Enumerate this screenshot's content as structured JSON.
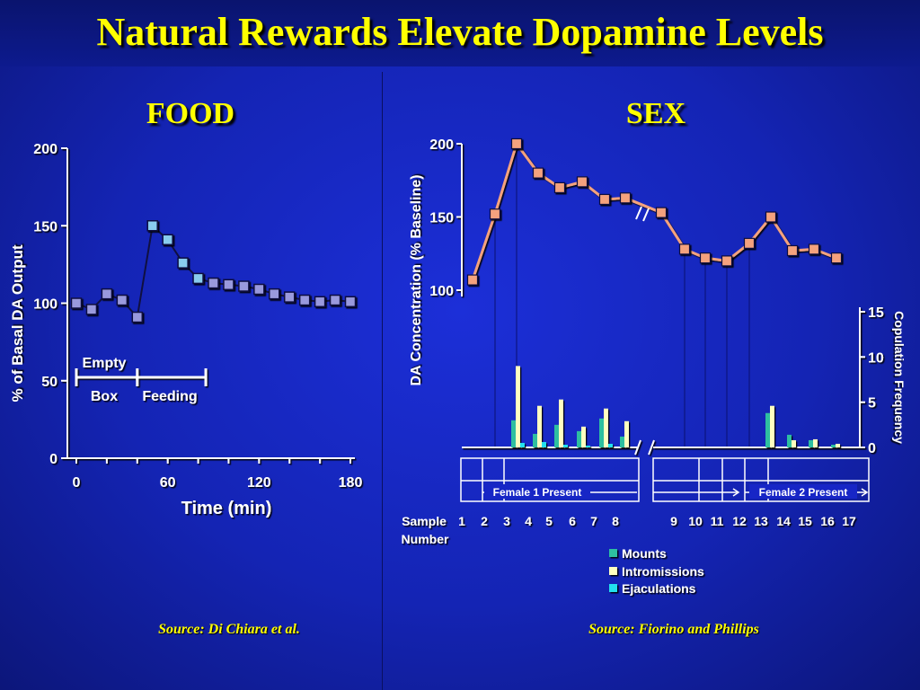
{
  "slide": {
    "title": "Natural Rewards Elevate Dopamine Levels"
  },
  "food": {
    "title": "FOOD",
    "source": "Source: Di Chiara et al.",
    "annotations": {
      "phase1_line1": "Empty",
      "phase1_line2": "Box",
      "phase2": "Feeding"
    }
  },
  "sex": {
    "title": "SEX",
    "source": "Source: Fiorino and Phillips",
    "period1_label": "Female 1 Present",
    "period2_label": "Female 2 Present",
    "sample_label_line1": "Sample",
    "sample_label_line2": "Number"
  },
  "colors": {
    "background": "#1726c6",
    "title": "#ffff00",
    "food_marker_baseline": "#9999dd",
    "food_marker_feeding": "#88ccee",
    "sex_line": "#f4a27e",
    "mounts": "#2fbfa0",
    "intromissions": "#ffffc0",
    "ejaculations": "#22e0ee"
  },
  "chart_data": [
    {
      "type": "line",
      "title": "FOOD",
      "xlabel": "Time (min)",
      "ylabel": "% of Basal DA Output",
      "xlim": [
        0,
        180
      ],
      "ylim": [
        0,
        200
      ],
      "xticks": [
        0,
        60,
        120,
        180
      ],
      "yticks": [
        0,
        50,
        100,
        150,
        200
      ],
      "grid": false,
      "series": [
        {
          "x": [
            0,
            10,
            20,
            30,
            40,
            50,
            60,
            70,
            80,
            90,
            100,
            110,
            120,
            130,
            140,
            150,
            160,
            170,
            180
          ],
          "y": [
            100,
            96,
            106,
            102,
            91,
            150,
            141,
            126,
            116,
            113,
            112,
            111,
            109,
            106,
            104,
            102,
            101,
            102,
            101
          ],
          "phase": [
            "baseline",
            "baseline",
            "baseline",
            "baseline",
            "baseline",
            "feeding",
            "feeding",
            "feeding",
            "feeding",
            "post",
            "post",
            "post",
            "post",
            "post",
            "post",
            "post",
            "post",
            "post",
            "post"
          ]
        }
      ],
      "phases": [
        {
          "label": "Empty Box",
          "x": [
            0,
            40
          ]
        },
        {
          "label": "Feeding",
          "x": [
            40,
            85
          ]
        }
      ]
    },
    {
      "type": "line+bar",
      "title": "SEX",
      "xlabel": "Sample Number",
      "ylabel": "DA Concentration (% Baseline)",
      "y2label": "Copulation Frequency",
      "ylim": [
        100,
        200
      ],
      "yticks": [
        100,
        150,
        200
      ],
      "y2lim": [
        0,
        15
      ],
      "y2ticks": [
        0,
        5,
        10,
        15
      ],
      "categories": [
        "1",
        "2",
        "3",
        "4",
        "5",
        "6",
        "7",
        "8",
        "9",
        "10",
        "11",
        "12",
        "13",
        "14",
        "15",
        "16",
        "17"
      ],
      "line_series": {
        "name": "DA Concentration",
        "values": [
          107,
          152,
          200,
          180,
          170,
          174,
          162,
          163,
          153,
          128,
          122,
          120,
          132,
          150,
          127,
          128,
          122
        ]
      },
      "bar_series": [
        {
          "name": "Mounts",
          "values": [
            0,
            0,
            3,
            1.5,
            2.5,
            1.8,
            3.2,
            1.2,
            0,
            0,
            0,
            0,
            0,
            3.8,
            1.4,
            0.8,
            0.3
          ]
        },
        {
          "name": "Intromissions",
          "values": [
            0,
            0,
            9,
            4.6,
            5.3,
            2.3,
            4.3,
            2.9,
            0,
            0,
            0,
            0,
            0,
            4.6,
            0.8,
            0.9,
            0.4
          ]
        },
        {
          "name": "Ejaculations",
          "values": [
            0,
            0,
            0.5,
            0.6,
            0.3,
            0.2,
            0.4,
            0,
            0,
            0,
            0,
            0,
            0,
            0,
            0,
            0,
            0
          ]
        }
      ],
      "periods": [
        {
          "label": "Female 1 Present",
          "samples": [
            3,
            8
          ]
        },
        {
          "label": "Female 2 Present",
          "samples": [
            13,
            17
          ]
        }
      ],
      "axis_break_between": [
        "8",
        "9"
      ]
    }
  ]
}
